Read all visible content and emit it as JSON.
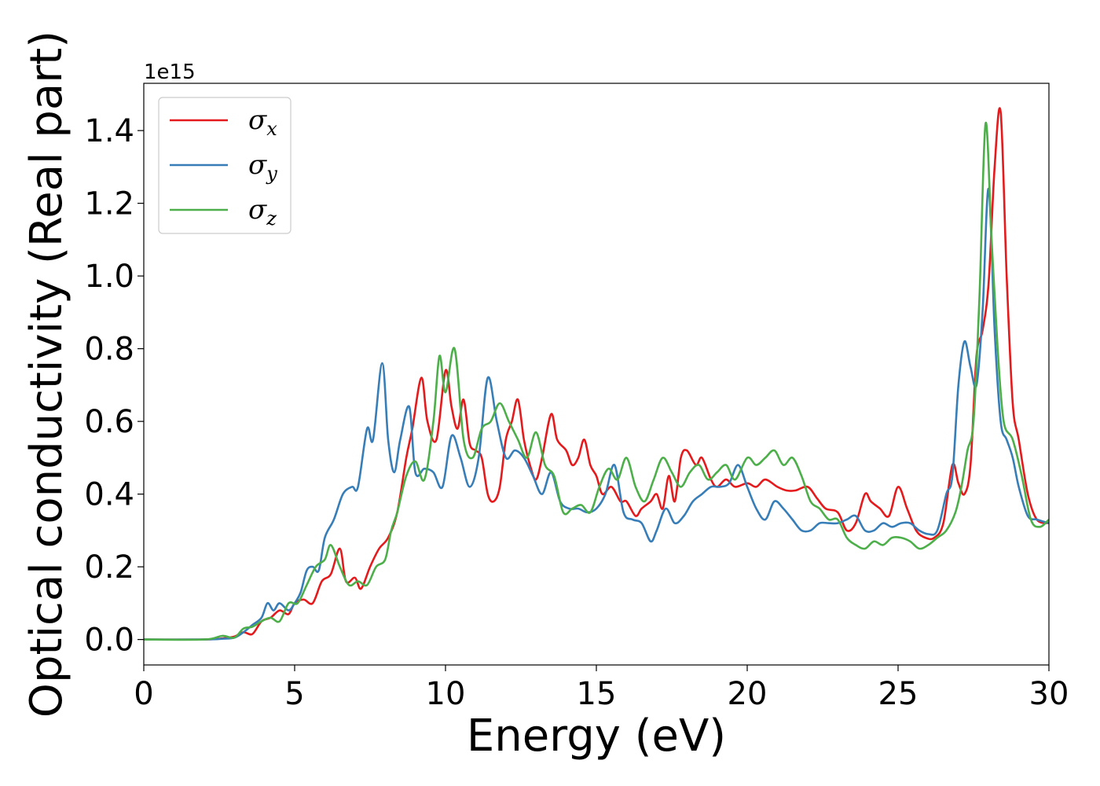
{
  "chart_data": {
    "type": "line",
    "title": "",
    "xlabel": "Energy (eV)",
    "ylabel": "Optical conductivity (Real part)",
    "y_offset_label": "1e15",
    "xlim": [
      0,
      30
    ],
    "ylim": [
      -0.07,
      1.53
    ],
    "xticks": [
      0,
      5,
      10,
      15,
      20,
      25,
      30
    ],
    "xtick_labels": [
      "0",
      "5",
      "10",
      "15",
      "20",
      "25",
      "30"
    ],
    "yticks": [
      0.0,
      0.2,
      0.4,
      0.6,
      0.8,
      1.0,
      1.2,
      1.4
    ],
    "ytick_labels": [
      "0.0",
      "0.2",
      "0.4",
      "0.6",
      "0.8",
      "1.0",
      "1.2",
      "1.4"
    ],
    "grid": false,
    "legend_position": "top-left",
    "colors": {
      "sigma_x": "#e41a1c",
      "sigma_y": "#377eb8",
      "sigma_z": "#4daf4a"
    },
    "series": [
      {
        "name": "σx",
        "symbol": "σ",
        "subscript": "x",
        "color": "#e41a1c",
        "x": [
          0,
          2,
          2.6,
          3.0,
          3.3,
          3.6,
          3.9,
          4.2,
          4.5,
          4.8,
          5.0,
          5.3,
          5.6,
          5.9,
          6.2,
          6.5,
          6.7,
          7.0,
          7.2,
          7.5,
          7.8,
          8.1,
          8.4,
          8.7,
          8.9,
          9.2,
          9.4,
          9.7,
          10.0,
          10.2,
          10.4,
          10.6,
          10.8,
          11.0,
          11.2,
          11.4,
          11.6,
          11.8,
          12.0,
          12.2,
          12.4,
          12.6,
          12.8,
          13.0,
          13.2,
          13.5,
          13.7,
          14.0,
          14.2,
          14.4,
          14.6,
          14.8,
          15.0,
          15.2,
          15.5,
          15.8,
          16.0,
          16.3,
          16.5,
          16.8,
          17.0,
          17.2,
          17.4,
          17.6,
          17.8,
          18.0,
          18.3,
          18.5,
          18.8,
          19.0,
          19.3,
          19.6,
          20.0,
          20.3,
          20.6,
          21.0,
          21.3,
          21.6,
          22.0,
          22.3,
          22.6,
          23.0,
          23.3,
          23.6,
          23.9,
          24.1,
          24.4,
          24.7,
          25.0,
          25.3,
          25.6,
          25.9,
          26.2,
          26.5,
          26.8,
          27.0,
          27.2,
          27.4,
          27.6,
          27.8,
          28.0,
          28.2,
          28.4,
          28.6,
          28.8,
          29.0,
          29.3,
          29.6,
          30.0
        ],
        "values": [
          0.0,
          0.0,
          0.003,
          0.008,
          0.02,
          0.015,
          0.05,
          0.06,
          0.08,
          0.07,
          0.1,
          0.11,
          0.1,
          0.16,
          0.18,
          0.25,
          0.16,
          0.17,
          0.14,
          0.2,
          0.25,
          0.28,
          0.35,
          0.5,
          0.58,
          0.72,
          0.6,
          0.55,
          0.74,
          0.64,
          0.58,
          0.66,
          0.54,
          0.52,
          0.5,
          0.4,
          0.38,
          0.42,
          0.55,
          0.6,
          0.66,
          0.55,
          0.48,
          0.44,
          0.5,
          0.62,
          0.55,
          0.52,
          0.48,
          0.5,
          0.55,
          0.48,
          0.45,
          0.4,
          0.42,
          0.38,
          0.38,
          0.34,
          0.36,
          0.38,
          0.4,
          0.36,
          0.45,
          0.38,
          0.5,
          0.52,
          0.48,
          0.5,
          0.44,
          0.42,
          0.44,
          0.42,
          0.43,
          0.42,
          0.44,
          0.42,
          0.41,
          0.41,
          0.42,
          0.39,
          0.36,
          0.35,
          0.3,
          0.32,
          0.4,
          0.38,
          0.36,
          0.34,
          0.42,
          0.36,
          0.3,
          0.28,
          0.28,
          0.32,
          0.48,
          0.43,
          0.4,
          0.48,
          0.78,
          0.85,
          0.98,
          1.3,
          1.45,
          1.0,
          0.65,
          0.55,
          0.4,
          0.33,
          0.32
        ]
      },
      {
        "name": "σy",
        "symbol": "σ",
        "subscript": "y",
        "color": "#377eb8",
        "x": [
          0,
          2,
          2.6,
          3.0,
          3.3,
          3.6,
          3.9,
          4.1,
          4.3,
          4.5,
          4.8,
          5.0,
          5.2,
          5.4,
          5.6,
          5.8,
          6.0,
          6.3,
          6.6,
          6.9,
          7.1,
          7.4,
          7.6,
          7.9,
          8.1,
          8.3,
          8.5,
          8.8,
          9.0,
          9.3,
          9.6,
          9.9,
          10.2,
          10.5,
          10.8,
          11.1,
          11.4,
          11.7,
          12.0,
          12.3,
          12.6,
          12.9,
          13.2,
          13.5,
          13.8,
          14.1,
          14.4,
          14.7,
          15.0,
          15.3,
          15.6,
          15.9,
          16.2,
          16.5,
          16.8,
          17.0,
          17.3,
          17.6,
          17.9,
          18.2,
          18.5,
          18.8,
          19.1,
          19.4,
          19.7,
          20.0,
          20.3,
          20.6,
          20.9,
          21.2,
          21.5,
          21.8,
          22.1,
          22.4,
          22.7,
          23.0,
          23.3,
          23.6,
          23.9,
          24.2,
          24.5,
          24.8,
          25.1,
          25.4,
          25.7,
          26.0,
          26.3,
          26.6,
          26.8,
          27.0,
          27.2,
          27.4,
          27.6,
          27.8,
          28.0,
          28.2,
          28.4,
          28.6,
          28.8,
          29.0,
          29.3,
          29.6,
          30.0
        ],
        "values": [
          0.0,
          0.0,
          0.002,
          0.005,
          0.02,
          0.04,
          0.06,
          0.1,
          0.08,
          0.1,
          0.08,
          0.1,
          0.13,
          0.19,
          0.2,
          0.19,
          0.28,
          0.33,
          0.4,
          0.42,
          0.42,
          0.58,
          0.55,
          0.76,
          0.55,
          0.46,
          0.55,
          0.64,
          0.46,
          0.47,
          0.46,
          0.42,
          0.56,
          0.5,
          0.42,
          0.5,
          0.72,
          0.6,
          0.5,
          0.52,
          0.5,
          0.45,
          0.4,
          0.46,
          0.38,
          0.36,
          0.36,
          0.35,
          0.36,
          0.4,
          0.48,
          0.35,
          0.33,
          0.32,
          0.27,
          0.3,
          0.36,
          0.32,
          0.34,
          0.38,
          0.4,
          0.42,
          0.42,
          0.43,
          0.48,
          0.42,
          0.36,
          0.33,
          0.38,
          0.36,
          0.33,
          0.3,
          0.3,
          0.32,
          0.32,
          0.32,
          0.33,
          0.34,
          0.3,
          0.3,
          0.32,
          0.31,
          0.32,
          0.32,
          0.3,
          0.29,
          0.3,
          0.4,
          0.45,
          0.7,
          0.82,
          0.75,
          0.7,
          0.9,
          1.24,
          0.85,
          0.6,
          0.55,
          0.5,
          0.42,
          0.34,
          0.33,
          0.32
        ]
      },
      {
        "name": "σz",
        "symbol": "σ",
        "subscript": "z",
        "color": "#4daf4a",
        "x": [
          0,
          2,
          2.6,
          3.0,
          3.3,
          3.6,
          3.9,
          4.2,
          4.5,
          4.8,
          5.1,
          5.4,
          5.7,
          6.0,
          6.2,
          6.5,
          6.8,
          7.1,
          7.4,
          7.7,
          8.0,
          8.2,
          8.4,
          8.7,
          9.0,
          9.3,
          9.6,
          9.8,
          10.0,
          10.3,
          10.6,
          10.9,
          11.2,
          11.5,
          11.8,
          12.1,
          12.4,
          12.7,
          13.0,
          13.3,
          13.6,
          13.9,
          14.2,
          14.5,
          14.8,
          15.1,
          15.4,
          15.7,
          16.0,
          16.3,
          16.6,
          16.9,
          17.2,
          17.5,
          17.8,
          18.1,
          18.4,
          18.7,
          19.0,
          19.3,
          19.6,
          20.0,
          20.3,
          20.6,
          20.9,
          21.2,
          21.5,
          21.8,
          22.1,
          22.4,
          22.7,
          23.0,
          23.3,
          23.6,
          23.9,
          24.2,
          24.5,
          24.8,
          25.1,
          25.4,
          25.7,
          26.0,
          26.3,
          26.6,
          26.9,
          27.1,
          27.3,
          27.5,
          27.7,
          27.9,
          28.1,
          28.3,
          28.5,
          28.8,
          29.1,
          29.4,
          29.7,
          30.0
        ],
        "values": [
          0.0,
          0.0,
          0.01,
          0.005,
          0.03,
          0.035,
          0.05,
          0.06,
          0.05,
          0.1,
          0.1,
          0.15,
          0.2,
          0.22,
          0.26,
          0.2,
          0.15,
          0.16,
          0.15,
          0.2,
          0.22,
          0.3,
          0.35,
          0.45,
          0.49,
          0.44,
          0.6,
          0.78,
          0.68,
          0.8,
          0.55,
          0.5,
          0.58,
          0.6,
          0.65,
          0.6,
          0.55,
          0.5,
          0.57,
          0.48,
          0.45,
          0.35,
          0.36,
          0.37,
          0.35,
          0.42,
          0.47,
          0.44,
          0.5,
          0.42,
          0.38,
          0.44,
          0.5,
          0.46,
          0.42,
          0.46,
          0.48,
          0.44,
          0.46,
          0.48,
          0.44,
          0.5,
          0.48,
          0.5,
          0.52,
          0.48,
          0.5,
          0.45,
          0.38,
          0.36,
          0.33,
          0.33,
          0.28,
          0.26,
          0.25,
          0.27,
          0.26,
          0.28,
          0.28,
          0.27,
          0.25,
          0.26,
          0.28,
          0.3,
          0.35,
          0.42,
          0.52,
          0.6,
          0.95,
          1.42,
          1.1,
          0.8,
          0.6,
          0.55,
          0.45,
          0.33,
          0.31,
          0.33
        ]
      }
    ]
  }
}
